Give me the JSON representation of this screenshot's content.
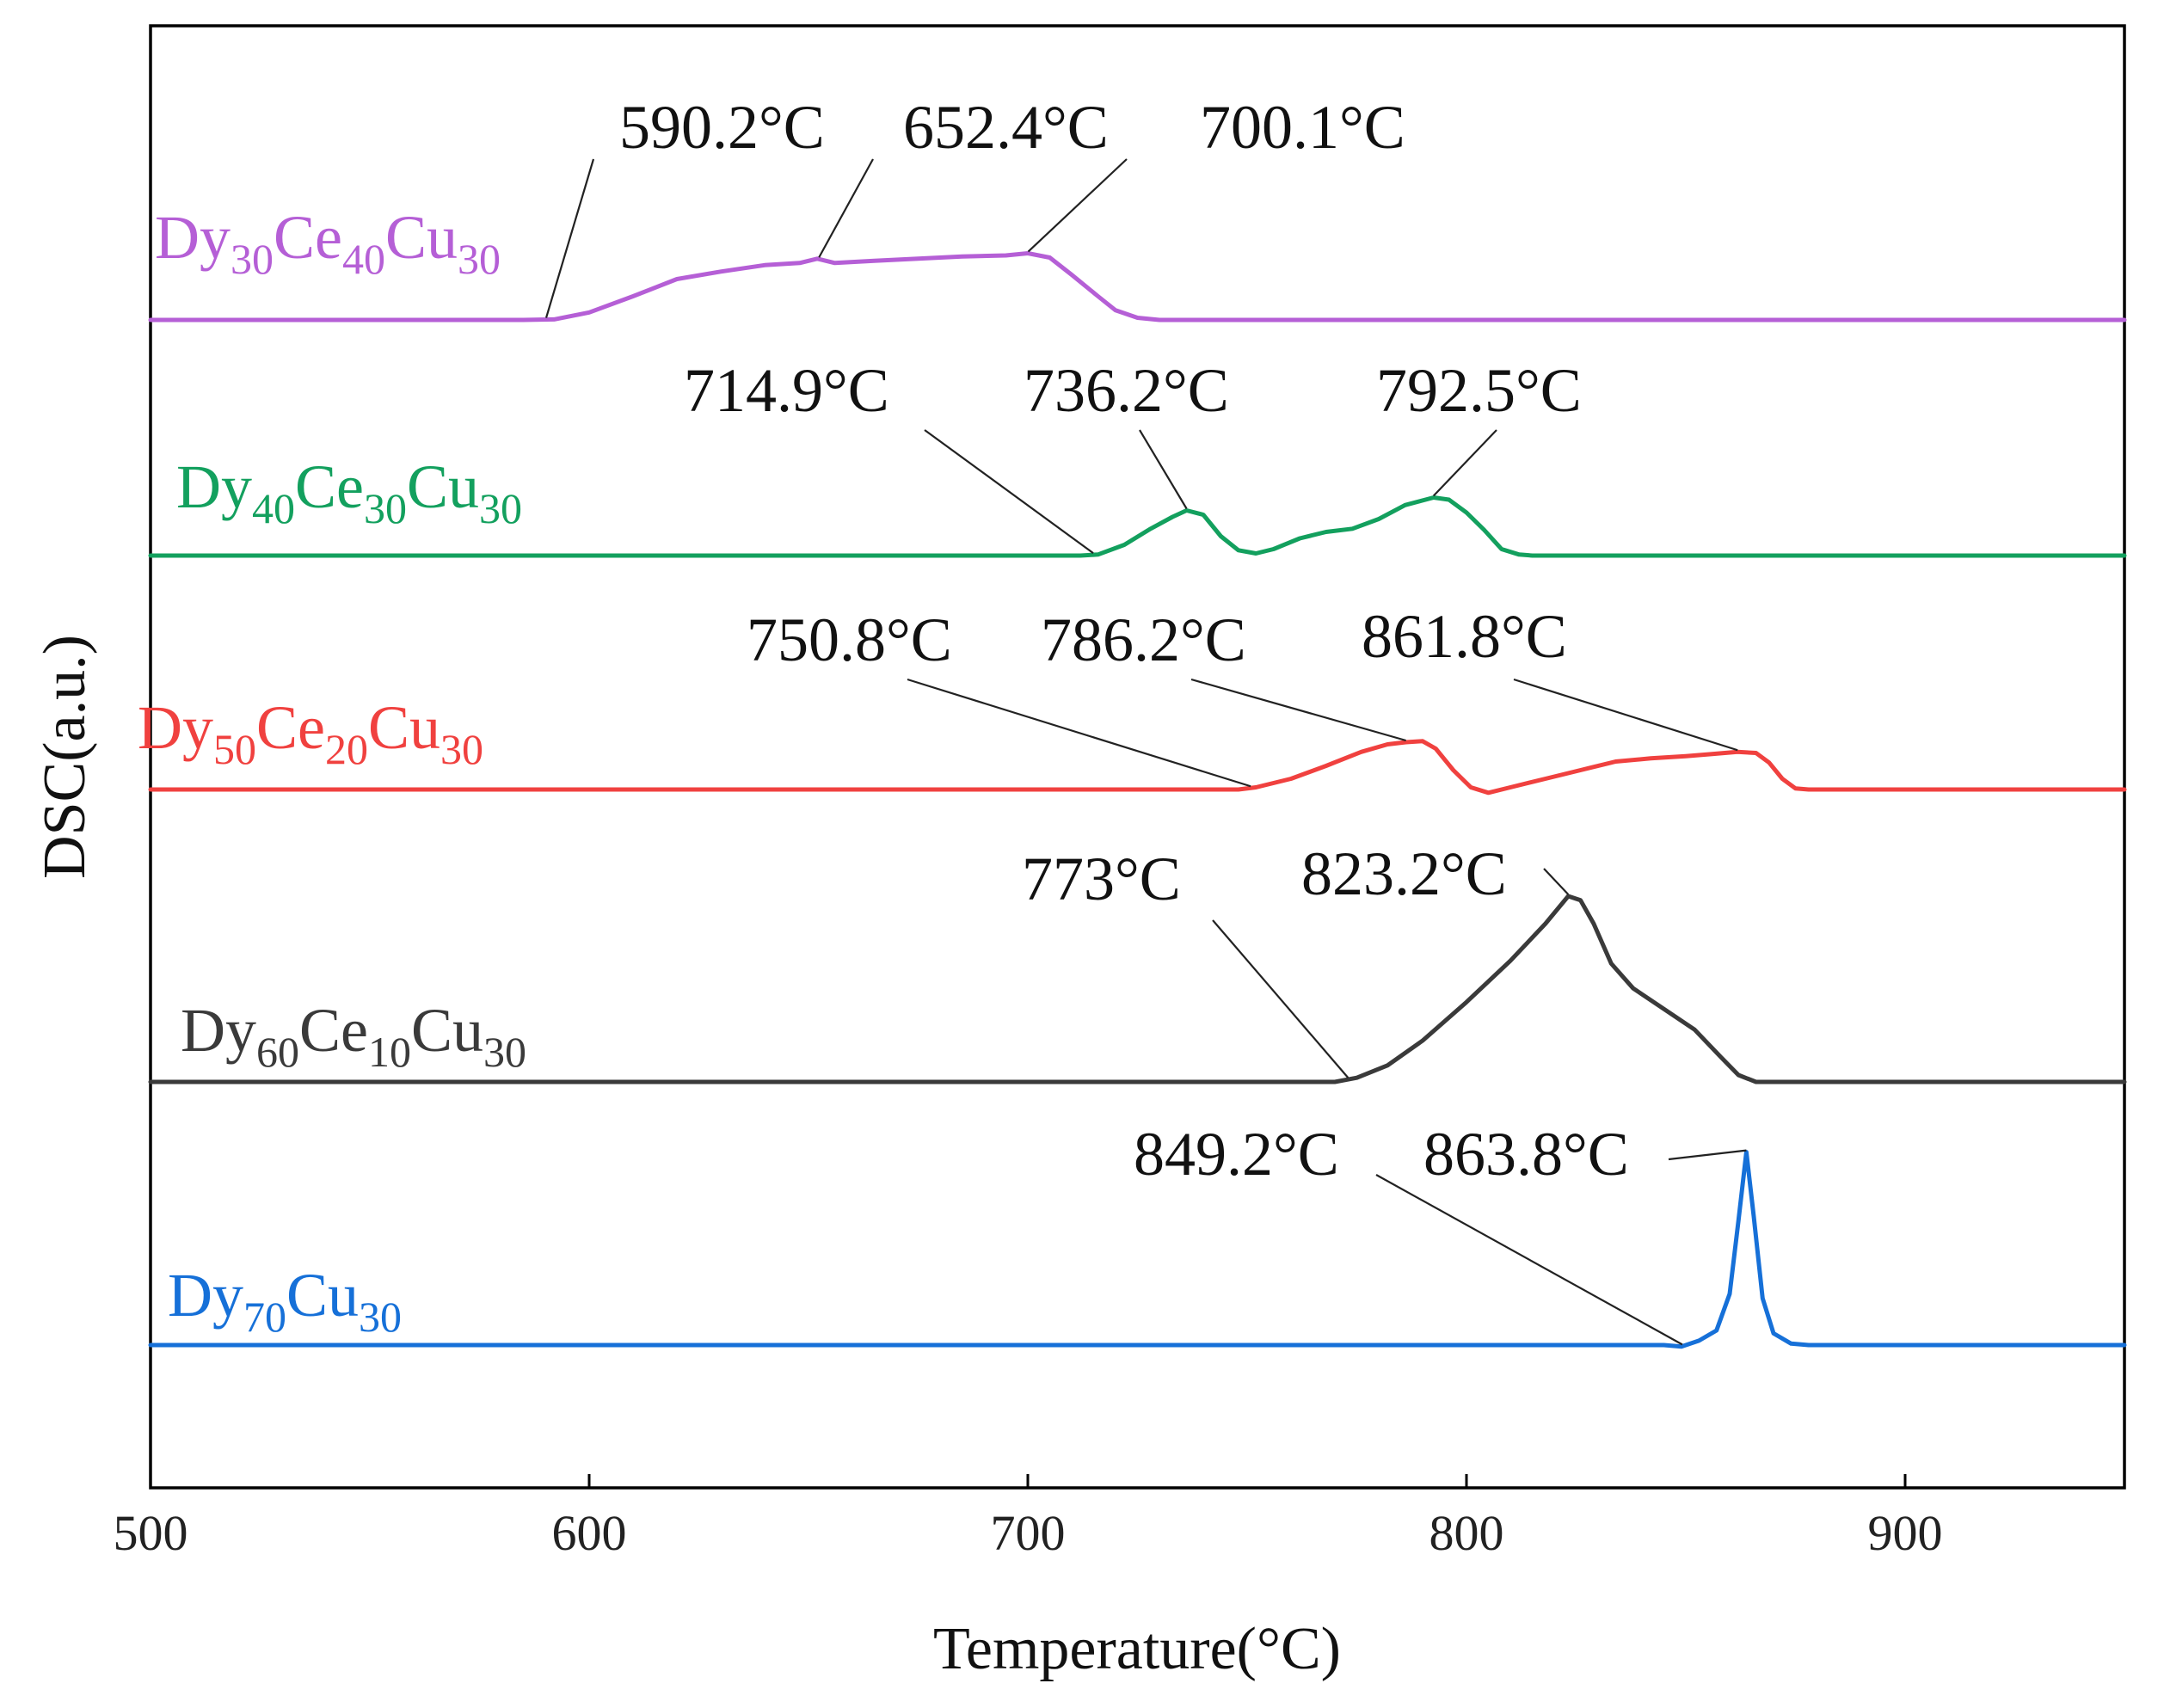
{
  "chart_data": {
    "type": "line",
    "xlabel": "Temperature(°C)",
    "ylabel": "DSC(a.u.)",
    "xlim": [
      500,
      950
    ],
    "xticks": [
      500,
      600,
      700,
      800,
      900
    ],
    "yticks": "none",
    "grid": false,
    "legend": "none",
    "series": [
      {
        "name": "Dy30Ce40Cu30",
        "label_parts": [
          [
            "Dy",
            ""
          ],
          [
            "30",
            "sub"
          ],
          [
            "Ce",
            ""
          ],
          [
            "40",
            "sub"
          ],
          [
            "Cu",
            ""
          ],
          [
            "30",
            "sub"
          ]
        ],
        "color": "#b55fd6",
        "baseline": 0,
        "points": [
          [
            500,
            0
          ],
          [
            585,
            0
          ],
          [
            592,
            0.5
          ],
          [
            600,
            7
          ],
          [
            610,
            22
          ],
          [
            620,
            38
          ],
          [
            630,
            45
          ],
          [
            640,
            51
          ],
          [
            648,
            53
          ],
          [
            652,
            57
          ],
          [
            656,
            53
          ],
          [
            665,
            55
          ],
          [
            675,
            57
          ],
          [
            685,
            59
          ],
          [
            695,
            60
          ],
          [
            700,
            62
          ],
          [
            705,
            58
          ],
          [
            710,
            42
          ],
          [
            716,
            22
          ],
          [
            720,
            9
          ],
          [
            725,
            2
          ],
          [
            730,
            0
          ],
          [
            950,
            0
          ]
        ],
        "annotations": [
          {
            "text": "590.2°C",
            "x": 590.2
          },
          {
            "text": "652.4°C",
            "x": 652.4
          },
          {
            "text": "700.1°C",
            "x": 700.1
          }
        ]
      },
      {
        "name": "Dy40Ce30Cu30",
        "label_parts": [
          [
            "Dy",
            ""
          ],
          [
            "40",
            "sub"
          ],
          [
            "Ce",
            ""
          ],
          [
            "30",
            "sub"
          ],
          [
            "Cu",
            ""
          ],
          [
            "30",
            "sub"
          ]
        ],
        "color": "#13a05e",
        "baseline": 0,
        "points": [
          [
            500,
            0
          ],
          [
            712,
            0
          ],
          [
            716,
            1
          ],
          [
            722,
            10
          ],
          [
            728,
            25
          ],
          [
            733,
            36
          ],
          [
            736.2,
            42
          ],
          [
            740,
            38
          ],
          [
            744,
            18
          ],
          [
            748,
            5
          ],
          [
            752,
            2
          ],
          [
            756,
            6
          ],
          [
            762,
            16
          ],
          [
            768,
            22
          ],
          [
            774,
            25
          ],
          [
            780,
            34
          ],
          [
            786,
            47
          ],
          [
            792.5,
            54
          ],
          [
            796,
            52
          ],
          [
            800,
            40
          ],
          [
            804,
            24
          ],
          [
            808,
            6
          ],
          [
            812,
            1
          ],
          [
            815,
            0
          ],
          [
            950,
            0
          ]
        ],
        "annotations": [
          {
            "text": "714.9°C",
            "x": 714.9
          },
          {
            "text": "736.2°C",
            "x": 736.2
          },
          {
            "text": "792.5°C",
            "x": 792.5
          }
        ]
      },
      {
        "name": "Dy50Ce20Cu30",
        "label_parts": [
          [
            "Dy",
            ""
          ],
          [
            "50",
            "sub"
          ],
          [
            "Ce",
            ""
          ],
          [
            "20",
            "sub"
          ],
          [
            "Cu",
            ""
          ],
          [
            "30",
            "sub"
          ]
        ],
        "color": "#f0413f",
        "baseline": 0,
        "points": [
          [
            500,
            0
          ],
          [
            748,
            0
          ],
          [
            752,
            2
          ],
          [
            760,
            10
          ],
          [
            768,
            22
          ],
          [
            776,
            35
          ],
          [
            782,
            42
          ],
          [
            786.2,
            44
          ],
          [
            790,
            45
          ],
          [
            793,
            38
          ],
          [
            797,
            18
          ],
          [
            801,
            2
          ],
          [
            805,
            -3
          ],
          [
            810,
            2
          ],
          [
            818,
            10
          ],
          [
            826,
            18
          ],
          [
            834,
            26
          ],
          [
            842,
            29
          ],
          [
            850,
            31
          ],
          [
            856,
            33
          ],
          [
            861.8,
            35
          ],
          [
            866,
            34
          ],
          [
            869,
            25
          ],
          [
            872,
            10
          ],
          [
            875,
            1
          ],
          [
            878,
            0
          ],
          [
            950,
            0
          ]
        ],
        "annotations": [
          {
            "text": "750.8°C",
            "x": 750.8
          },
          {
            "text": "786.2°C",
            "x": 786.2
          },
          {
            "text": "861.8°C",
            "x": 861.8
          }
        ]
      },
      {
        "name": "Dy60Ce10Cu30",
        "label_parts": [
          [
            "Dy",
            ""
          ],
          [
            "60",
            "sub"
          ],
          [
            "Ce",
            ""
          ],
          [
            "10",
            "sub"
          ],
          [
            "Cu",
            ""
          ],
          [
            "30",
            "sub"
          ]
        ],
        "color": "#3a3a3a",
        "baseline": 0,
        "points": [
          [
            500,
            0
          ],
          [
            770,
            0
          ],
          [
            775,
            3
          ],
          [
            782,
            12
          ],
          [
            790,
            30
          ],
          [
            800,
            58
          ],
          [
            810,
            88
          ],
          [
            818,
            115
          ],
          [
            823.2,
            135
          ],
          [
            826,
            132
          ],
          [
            829,
            115
          ],
          [
            833,
            86
          ],
          [
            838,
            68
          ],
          [
            845,
            53
          ],
          [
            852,
            38
          ],
          [
            858,
            18
          ],
          [
            862,
            5
          ],
          [
            866,
            0
          ],
          [
            950,
            0
          ]
        ],
        "annotations": [
          {
            "text": "773°C",
            "x": 773
          },
          {
            "text": "823.2°C",
            "x": 823.2
          }
        ]
      },
      {
        "name": "Dy70Cu30",
        "label_parts": [
          [
            "Dy",
            ""
          ],
          [
            "70",
            "sub"
          ],
          [
            "Cu",
            ""
          ],
          [
            "30",
            "sub"
          ]
        ],
        "color": "#1670d8",
        "baseline": 0,
        "points": [
          [
            500,
            0
          ],
          [
            845,
            0
          ],
          [
            849,
            -1
          ],
          [
            853,
            3
          ],
          [
            857,
            10
          ],
          [
            860,
            35
          ],
          [
            862,
            85
          ],
          [
            863.8,
            132
          ],
          [
            865.5,
            88
          ],
          [
            867.5,
            32
          ],
          [
            870,
            8
          ],
          [
            874,
            1
          ],
          [
            878,
            0
          ],
          [
            950,
            0
          ]
        ],
        "annotations": [
          {
            "text": "849.2°C",
            "x": 849.2
          },
          {
            "text": "863.8°C",
            "x": 863.8
          }
        ]
      }
    ]
  }
}
